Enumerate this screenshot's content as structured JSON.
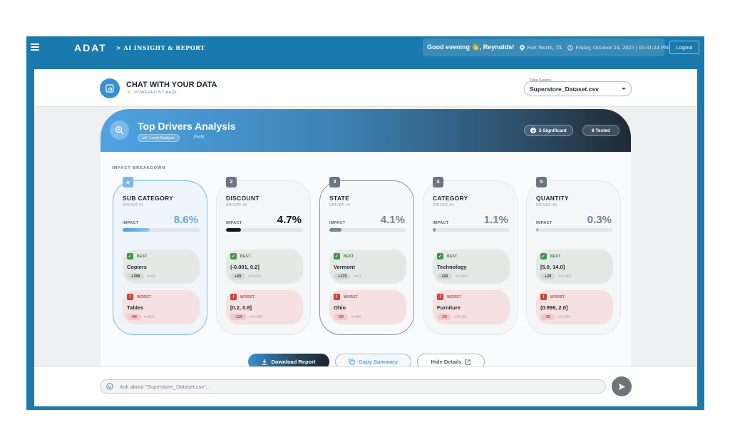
{
  "topbar": {
    "brand": "ADAT",
    "subtitle": "> AI INSIGHT & REPORT",
    "greeting": "Good evening 👋, Reynolds!",
    "location": "Fort Worth, TX",
    "datetime": "Friday, October 24, 2025 | 01:31:24 PM",
    "logout_label": "Logout"
  },
  "chat": {
    "title": "CHAT WITH YOUR DATA",
    "powered_by": "POWERED BY AAQL",
    "data_source_label": "Data Source",
    "data_source_value": "Superstore_Dataset.csv"
  },
  "analysis": {
    "title": "Top Drivers Analysis",
    "level_pill": "Level Analysis",
    "target": "Profit",
    "significant_label": "5 Significant",
    "tested_label": "8 Tested",
    "section_label": "IMPACT BREAKDOWN",
    "impact_label": "IMPACT",
    "best_label": "BEST",
    "worst_label": "WORST",
    "drivers": [
      {
        "rank": "1",
        "name": "SUB CATEGORY",
        "sub": "DRIVER #1",
        "impact": "8.6%",
        "impact_fraction": 0.35,
        "best_value": "Copiers",
        "best_delta": "+789",
        "best_n": "n=68",
        "worst_value": "Tables",
        "worst_delta": "-84",
        "worst_n": "n=319"
      },
      {
        "rank": "2",
        "name": "DISCOUNT",
        "sub": "DRIVER #2",
        "impact": "4.7%",
        "impact_fraction": 0.19,
        "best_value": "(-0.001, 0.2]",
        "best_delta": "+20",
        "best_n": "n=8,601",
        "worst_value": "[0.2, 0.8]",
        "worst_delta": "-126",
        "worst_n": "n=1,393"
      },
      {
        "rank": "3",
        "name": "STATE",
        "sub": "DRIVER #3",
        "impact": "4.1%",
        "impact_fraction": 0.16,
        "best_value": "Vermont",
        "best_delta": "+175",
        "best_n": "n=11",
        "worst_value": "Ohio",
        "worst_delta": "-83",
        "worst_n": "n=469"
      },
      {
        "rank": "4",
        "name": "CATEGORY",
        "sub": "DRIVER #4",
        "impact": "1.1%",
        "impact_fraction": 0.04,
        "best_value": "Technology",
        "best_delta": "+50",
        "best_n": "n=1,847",
        "worst_value": "Furniture",
        "worst_delta": "-20",
        "worst_n": "n=2,121"
      },
      {
        "rank": "5",
        "name": "QUANTITY",
        "sub": "DRIVER #5",
        "impact": "0.3%",
        "impact_fraction": 0.01,
        "best_value": "[5.0, 14.0]",
        "best_delta": "+20",
        "best_n": "n=1,863",
        "worst_value": "(0.999, 2.0]",
        "worst_delta": "-35",
        "worst_n": "n=3,501"
      }
    ]
  },
  "actions": {
    "download_label": "Download Report",
    "copy_label": "Copy Summary",
    "hide_label": "Hide Details"
  },
  "input": {
    "placeholder": "Ask about \"Superstore_Dataset.csv\"..."
  },
  "colors": {
    "frame": "#1a7aad",
    "accent": "#3a8fd0",
    "best": "#3f9a4a",
    "worst": "#d0433f"
  }
}
